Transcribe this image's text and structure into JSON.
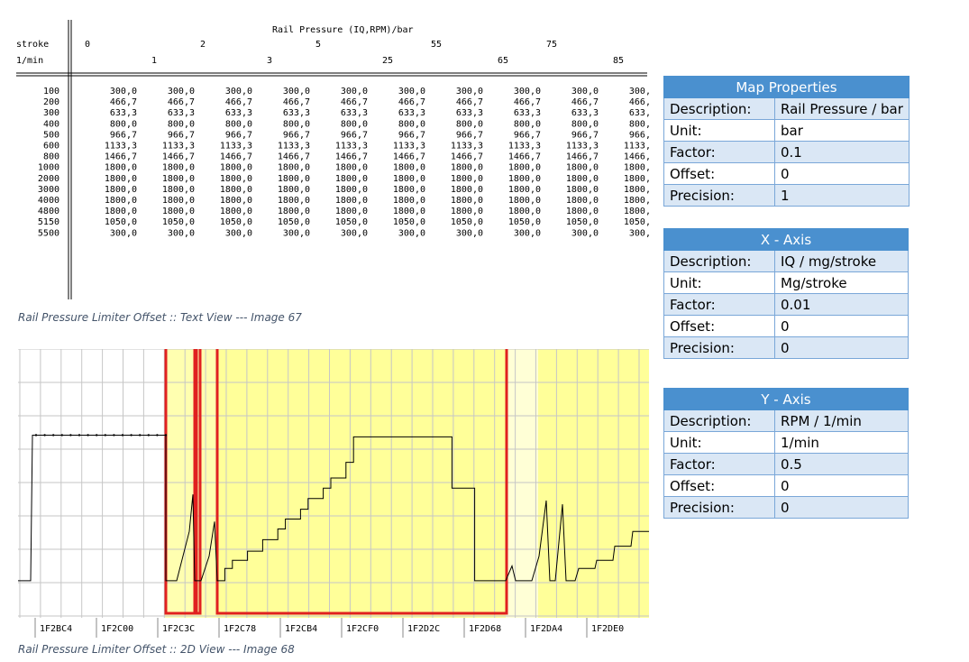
{
  "map_view": {
    "title": "Rail Pressure (IQ,RPM)/bar",
    "row_axis_label_1": "stroke",
    "row_axis_label_2": "1/min",
    "x_axis_even": [
      "0",
      "2",
      "5",
      "55",
      "75"
    ],
    "x_axis_odd": [
      "1",
      "3",
      "25",
      "65",
      "85"
    ],
    "rpm": [
      "100",
      "200",
      "300",
      "400",
      "500",
      "600",
      "800",
      "1000",
      "2000",
      "3000",
      "4000",
      "4800",
      "5150",
      "5500"
    ],
    "values": [
      "300,0",
      "466,7",
      "633,3",
      "800,0",
      "966,7",
      "1133,3",
      "1466,7",
      "1800,0",
      "1800,0",
      "1800,0",
      "1800,0",
      "1800,0",
      "1050,0",
      "300,0"
    ],
    "caption": "Rail Pressure Limiter Offset :: Text View --- Image 67"
  },
  "graph_view": {
    "addresses": [
      "1F2BC4",
      "1F2C00",
      "1F2C3C",
      "1F2C78",
      "1F2CB4",
      "1F2CF0",
      "1F2D2C",
      "1F2D68",
      "1F2DA4",
      "1F2DE0"
    ],
    "caption": "Rail Pressure Limiter Offset :: 2D View --- Image 68",
    "highlight_color": "#ffff99",
    "selection_color": "#e02020"
  },
  "map_properties": {
    "header": "Map Properties",
    "rows": [
      {
        "k": "Description:",
        "v": "Rail Pressure / bar"
      },
      {
        "k": "Unit:",
        "v": "bar"
      },
      {
        "k": "Factor:",
        "v": "0.1"
      },
      {
        "k": "Offset:",
        "v": "0"
      },
      {
        "k": "Precision:",
        "v": "1"
      }
    ]
  },
  "x_axis": {
    "header": "X - Axis",
    "rows": [
      {
        "k": "Description:",
        "v": "IQ / mg/stroke"
      },
      {
        "k": "Unit:",
        "v": "Mg/stroke"
      },
      {
        "k": "Factor:",
        "v": "0.01"
      },
      {
        "k": "Offset:",
        "v": "0"
      },
      {
        "k": "Precision:",
        "v": "0"
      }
    ]
  },
  "y_axis": {
    "header": "Y - Axis",
    "rows": [
      {
        "k": "Description:",
        "v": "RPM / 1/min"
      },
      {
        "k": "Unit:",
        "v": "1/min"
      },
      {
        "k": "Factor:",
        "v": "0.5"
      },
      {
        "k": "Offset:",
        "v": "0"
      },
      {
        "k": "Precision:",
        "v": "0"
      }
    ]
  }
}
